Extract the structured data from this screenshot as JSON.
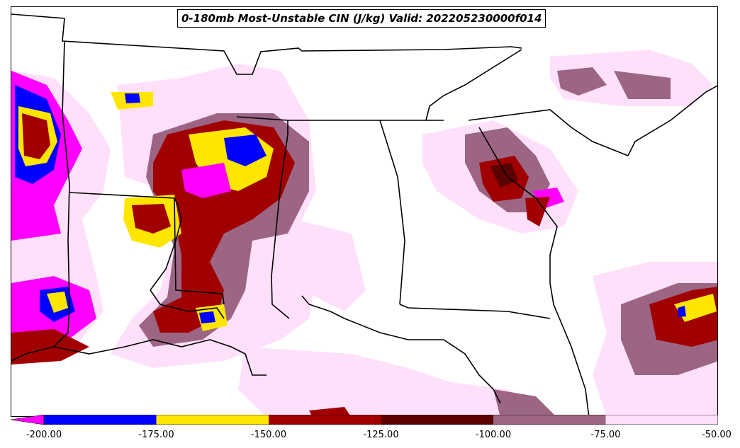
{
  "title": "0-180mb Most-Unstable CIN (J/kg) Valid: 202205230000f014",
  "colorbar": {
    "levels": [
      "-200.00",
      "-175.00",
      "-150.00",
      "-125.00",
      "-100.00",
      "-75.00",
      "-50.00"
    ],
    "colors": {
      "extend_below": "#ff00ff",
      "c1": "#0000ff",
      "c2": "#ffe600",
      "c3": "#a00000",
      "c4": "#5c0000",
      "c5": "#9c6584",
      "c6": "#ffe0fb"
    }
  },
  "map_colors": {
    "boundary": "#000000",
    "background": "#ffffff"
  }
}
